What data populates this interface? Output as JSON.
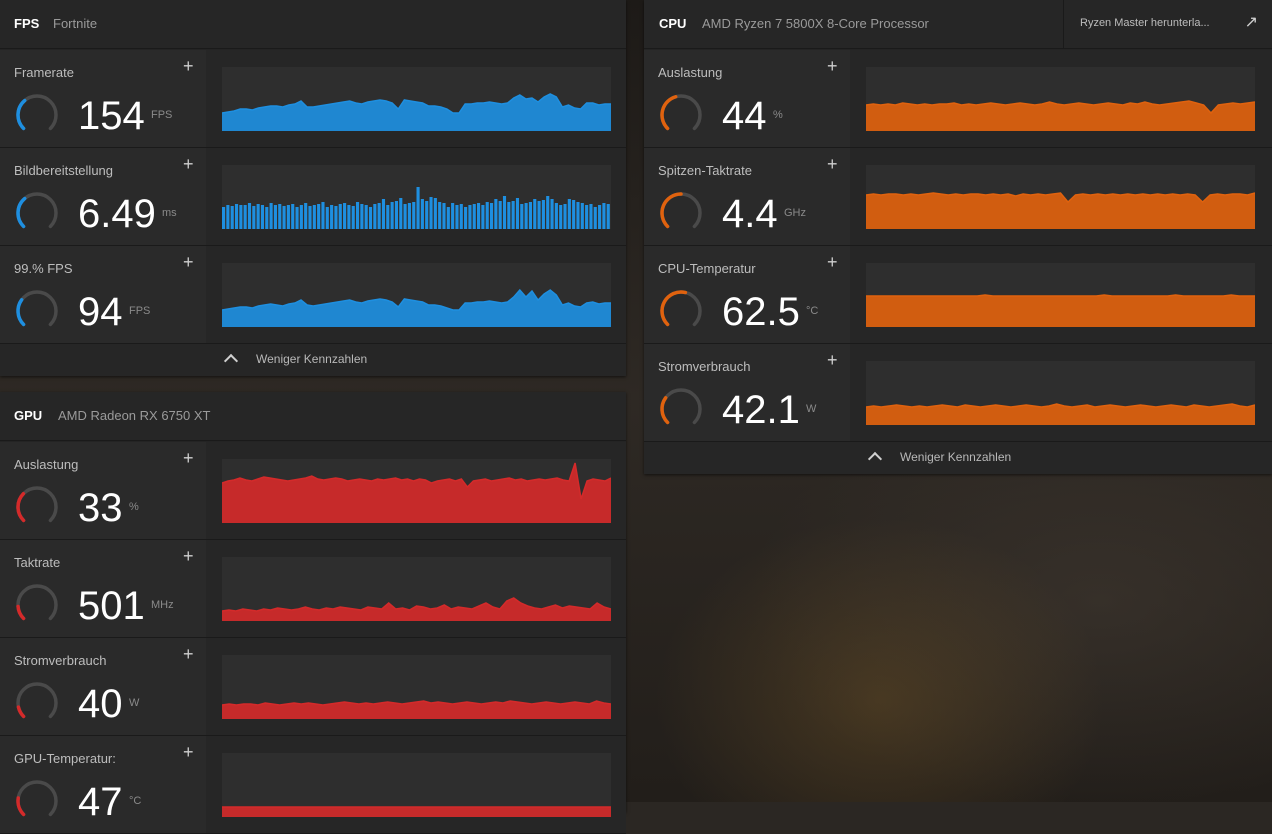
{
  "colors": {
    "fps": "#1e8fe0",
    "gpu": "#d42a2a",
    "cpu": "#e0620e",
    "track": "#4a4a4a"
  },
  "fps_panel": {
    "title": "FPS",
    "subtitle": "Fortnite",
    "footer": "Weniger Kennzahlen",
    "metrics": [
      {
        "label": "Framerate",
        "value": "154",
        "unit": "FPS",
        "gauge": 0.35,
        "series": [
          18,
          19,
          20,
          22,
          22,
          21,
          23,
          24,
          25,
          25,
          24,
          26,
          27,
          30,
          24,
          24,
          25,
          26,
          27,
          28,
          29,
          30,
          28,
          27,
          29,
          30,
          31,
          30,
          28,
          22,
          31,
          30,
          29,
          28,
          25,
          25,
          24,
          22,
          18,
          18,
          27,
          27,
          28,
          28,
          29,
          28,
          27,
          28,
          33,
          36,
          32,
          33,
          29,
          34,
          37,
          34,
          24,
          26,
          23,
          22,
          28,
          28,
          26,
          27,
          27
        ]
      },
      {
        "label": "Bildbereitstellung",
        "value": "6.49",
        "unit": "ms",
        "gauge": 0.35,
        "series": [
          22,
          24,
          23,
          25,
          24,
          24,
          26,
          23,
          25,
          24,
          22,
          26,
          24,
          25,
          23,
          24,
          25,
          22,
          24,
          26,
          23,
          24,
          25,
          27,
          22,
          24,
          23,
          25,
          26,
          24,
          23,
          27,
          25,
          24,
          22,
          25,
          26,
          30,
          24,
          27,
          28,
          31,
          25,
          26,
          27,
          42,
          30,
          28,
          32,
          31,
          27,
          26,
          22,
          26,
          24,
          25,
          22,
          24,
          25,
          26,
          24,
          27,
          26,
          30,
          28,
          33,
          27,
          28,
          31,
          25,
          26,
          27,
          30,
          28,
          29,
          33,
          30,
          26,
          24,
          25,
          30,
          29,
          27,
          26,
          24,
          25,
          22,
          24,
          26,
          25
        ]
      },
      {
        "label": "99.% FPS",
        "value": "94",
        "unit": "FPS",
        "gauge": 0.3,
        "series": [
          17,
          18,
          19,
          20,
          20,
          19,
          21,
          22,
          23,
          22,
          21,
          23,
          24,
          27,
          22,
          21,
          22,
          23,
          24,
          25,
          26,
          27,
          25,
          24,
          26,
          27,
          28,
          27,
          25,
          20,
          28,
          27,
          26,
          25,
          22,
          22,
          21,
          19,
          17,
          17,
          24,
          24,
          25,
          25,
          26,
          25,
          24,
          25,
          30,
          37,
          30,
          36,
          27,
          33,
          37,
          32,
          22,
          24,
          21,
          20,
          24,
          25,
          23,
          24,
          24
        ]
      }
    ]
  },
  "gpu_panel": {
    "title": "GPU",
    "subtitle": "AMD Radeon RX 6750 XT",
    "metrics": [
      {
        "label": "Auslastung",
        "value": "33",
        "unit": "%",
        "gauge": 0.33,
        "series": [
          40,
          42,
          43,
          45,
          43,
          42,
          44,
          46,
          45,
          44,
          43,
          42,
          43,
          44,
          45,
          47,
          44,
          43,
          44,
          45,
          44,
          42,
          43,
          44,
          43,
          42,
          44,
          43,
          44,
          45,
          43,
          44,
          42,
          44,
          43,
          40,
          42,
          43,
          44,
          42,
          44,
          36,
          42,
          43,
          44,
          42,
          43,
          44,
          45,
          43,
          44,
          42,
          43,
          44,
          43,
          44,
          45,
          43,
          42,
          60,
          24,
          42,
          44,
          43,
          42,
          45
        ]
      },
      {
        "label": "Taktrate",
        "value": "501",
        "unit": "MHz",
        "gauge": 0.15,
        "series": [
          10,
          11,
          10,
          12,
          11,
          10,
          12,
          11,
          13,
          12,
          11,
          12,
          14,
          12,
          11,
          13,
          12,
          14,
          13,
          12,
          11,
          14,
          13,
          12,
          18,
          12,
          13,
          11,
          15,
          14,
          12,
          13,
          16,
          12,
          14,
          13,
          12,
          15,
          18,
          14,
          12,
          20,
          23,
          18,
          15,
          13,
          12,
          14,
          16,
          13,
          15,
          14,
          13,
          12,
          18,
          14,
          12
        ]
      },
      {
        "label": "Stromverbrauch",
        "value": "40",
        "unit": "W",
        "gauge": 0.12,
        "series": [
          14,
          15,
          14,
          15,
          15,
          14,
          16,
          15,
          14,
          15,
          16,
          15,
          16,
          15,
          14,
          15,
          16,
          17,
          16,
          15,
          16,
          15,
          16,
          17,
          16,
          15,
          16,
          17,
          18,
          16,
          17,
          16,
          15,
          16,
          17,
          16,
          15,
          16,
          17,
          16,
          18,
          17,
          16,
          15,
          16,
          17,
          16,
          15,
          16,
          17,
          16,
          15,
          18,
          16,
          15
        ]
      },
      {
        "label": "GPU-Temperatur:",
        "value": "47",
        "unit": "°C",
        "gauge": 0.2,
        "series": [
          10,
          10,
          10,
          10,
          10,
          10,
          10,
          10,
          10,
          10,
          10,
          10,
          10,
          10,
          10,
          10,
          10,
          10,
          10,
          10,
          10,
          10,
          10,
          10,
          10
        ]
      }
    ]
  },
  "cpu_panel": {
    "title": "CPU",
    "subtitle": "AMD Ryzen 7 5800X 8-Core Processor",
    "link_label": "Ryzen Master herunterla...",
    "footer": "Weniger Kennzahlen",
    "metrics": [
      {
        "label": "Auslastung",
        "value": "44",
        "unit": "%",
        "gauge": 0.44,
        "series": [
          26,
          27,
          26,
          27,
          26,
          28,
          27,
          26,
          27,
          26,
          27,
          27,
          28,
          26,
          27,
          26,
          27,
          28,
          27,
          26,
          27,
          28,
          27,
          26,
          27,
          29,
          27,
          26,
          27,
          28,
          27,
          26,
          27,
          28,
          27,
          26,
          28,
          27,
          29,
          27,
          26,
          27,
          28,
          29,
          30,
          28,
          26,
          18,
          26,
          27,
          28,
          27,
          28,
          29
        ]
      },
      {
        "label": "Spitzen-Taktrate",
        "value": "4.4",
        "unit": "GHz",
        "gauge": 0.5,
        "series": [
          34,
          35,
          34,
          35,
          35,
          34,
          35,
          34,
          35,
          36,
          35,
          34,
          35,
          34,
          35,
          35,
          34,
          35,
          34,
          35,
          33,
          35,
          34,
          35,
          34,
          35,
          36,
          27,
          34,
          35,
          34,
          35,
          34,
          35,
          34,
          35,
          34,
          35,
          34,
          35,
          34,
          35,
          34,
          35,
          34,
          27,
          34,
          35,
          34,
          35,
          35,
          34,
          36
        ]
      },
      {
        "label": "CPU-Temperatur",
        "value": "62.5",
        "unit": "°C",
        "gauge": 0.55,
        "series": [
          31,
          31,
          31,
          31,
          31,
          31,
          31,
          31,
          31,
          31,
          31,
          31,
          31,
          31,
          31,
          32,
          31,
          31,
          31,
          31,
          31,
          31,
          31,
          31,
          31,
          31,
          31,
          31,
          31,
          31,
          32,
          31,
          31,
          31,
          31,
          31,
          31,
          31,
          31,
          32,
          31,
          31,
          31,
          31,
          31,
          31,
          32,
          31,
          31,
          31
        ]
      },
      {
        "label": "Stromverbrauch",
        "value": "42.1",
        "unit": "W",
        "gauge": 0.3,
        "series": [
          18,
          19,
          18,
          19,
          20,
          19,
          18,
          19,
          18,
          19,
          20,
          19,
          18,
          20,
          19,
          18,
          19,
          20,
          19,
          18,
          19,
          20,
          19,
          18,
          19,
          21,
          19,
          18,
          19,
          20,
          18,
          19,
          20,
          19,
          18,
          19,
          20,
          19,
          18,
          19,
          20,
          19,
          18,
          20,
          19,
          18,
          19,
          20,
          21,
          19,
          18,
          20
        ]
      }
    ]
  }
}
